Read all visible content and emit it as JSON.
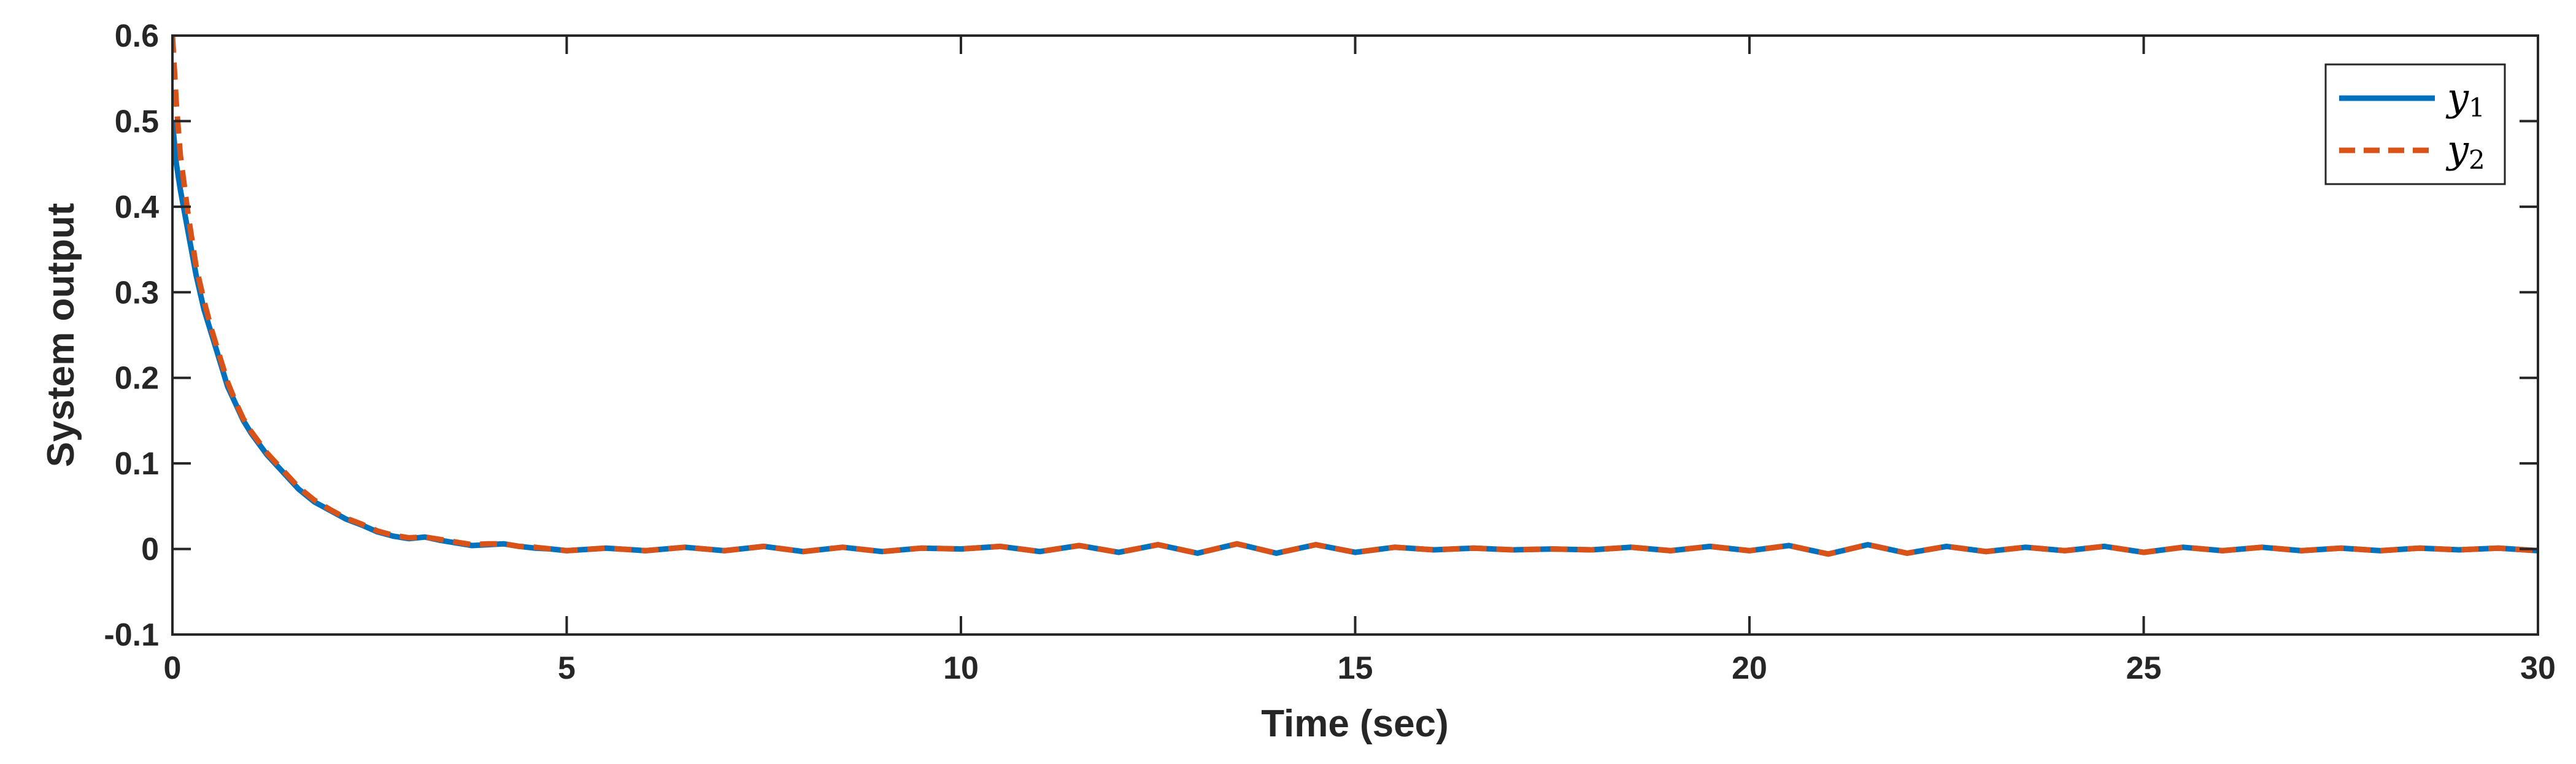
{
  "chart_data": {
    "type": "line",
    "title": "",
    "xlabel": "Time (sec)",
    "ylabel": "System output",
    "xlim": [
      0,
      30
    ],
    "ylim": [
      -0.1,
      0.6
    ],
    "xticks": [
      0,
      5,
      10,
      15,
      20,
      25,
      30
    ],
    "yticks": [
      -0.1,
      0,
      0.1,
      0.2,
      0.3,
      0.4,
      0.5,
      0.6
    ],
    "xtick_labels": [
      "0",
      "5",
      "10",
      "15",
      "20",
      "25",
      "30"
    ],
    "ytick_labels": [
      "-0.1",
      "0",
      "0.1",
      "0.2",
      "0.3",
      "0.4",
      "0.5",
      "0.6"
    ],
    "grid": false,
    "legend_position": "top-right",
    "series": [
      {
        "name": "y1",
        "name_base": "y",
        "name_sub": "1",
        "color": "#0072BD",
        "line_style": "solid",
        "x": [
          0,
          0.05,
          0.1,
          0.2,
          0.3,
          0.4,
          0.5,
          0.6,
          0.7,
          0.8,
          0.9,
          1.0,
          1.2,
          1.4,
          1.6,
          1.8,
          2.0,
          2.2,
          2.4,
          2.6,
          2.8,
          3.0,
          3.2,
          3.4,
          3.6,
          3.8,
          4.0,
          4.2,
          4.4,
          4.6,
          4.8,
          5.0,
          5.5,
          6.0,
          6.5,
          7.0,
          7.5,
          8.0,
          8.5,
          9.0,
          9.5,
          10.0,
          10.5,
          11.0,
          11.5,
          12.0,
          12.5,
          13.0,
          13.5,
          14.0,
          14.5,
          15.0,
          15.5,
          16.0,
          16.5,
          17.0,
          17.5,
          18.0,
          18.5,
          19.0,
          19.5,
          20.0,
          20.5,
          21.0,
          21.5,
          22.0,
          22.5,
          23.0,
          23.5,
          24.0,
          24.5,
          25.0,
          25.5,
          26.0,
          26.5,
          27.0,
          27.5,
          28.0,
          28.5,
          29.0,
          29.5,
          30.0
        ],
        "y": [
          0.5,
          0.45,
          0.42,
          0.37,
          0.32,
          0.28,
          0.25,
          0.22,
          0.19,
          0.17,
          0.15,
          0.135,
          0.11,
          0.09,
          0.07,
          0.055,
          0.045,
          0.035,
          0.028,
          0.02,
          0.015,
          0.012,
          0.014,
          0.01,
          0.007,
          0.004,
          0.005,
          0.006,
          0.003,
          0.001,
          0.0,
          -0.002,
          0.001,
          -0.002,
          0.002,
          -0.002,
          0.003,
          -0.003,
          0.002,
          -0.003,
          0.001,
          0.0,
          0.003,
          -0.003,
          0.004,
          -0.004,
          0.005,
          -0.005,
          0.006,
          -0.005,
          0.005,
          -0.004,
          0.002,
          -0.001,
          0.001,
          -0.001,
          0.0,
          -0.001,
          0.002,
          -0.002,
          0.003,
          -0.002,
          0.004,
          -0.006,
          0.005,
          -0.005,
          0.003,
          -0.003,
          0.002,
          -0.002,
          0.003,
          -0.004,
          0.002,
          -0.002,
          0.002,
          -0.002,
          0.001,
          -0.002,
          0.001,
          -0.001,
          0.001,
          -0.002
        ]
      },
      {
        "name": "y2",
        "name_base": "y",
        "name_sub": "2",
        "color": "#D95319",
        "line_style": "dashed",
        "x": [
          0,
          0.05,
          0.1,
          0.2,
          0.3,
          0.4,
          0.5,
          0.6,
          0.7,
          0.8,
          0.9,
          1.0,
          1.2,
          1.4,
          1.6,
          1.8,
          2.0,
          2.2,
          2.4,
          2.6,
          2.8,
          3.0,
          3.2,
          3.4,
          3.6,
          3.8,
          4.0,
          4.2,
          4.4,
          4.6,
          4.8,
          5.0,
          5.5,
          6.0,
          6.5,
          7.0,
          7.5,
          8.0,
          8.5,
          9.0,
          9.5,
          10.0,
          10.5,
          11.0,
          11.5,
          12.0,
          12.5,
          13.0,
          13.5,
          14.0,
          14.5,
          15.0,
          15.5,
          16.0,
          16.5,
          17.0,
          17.5,
          18.0,
          18.5,
          19.0,
          19.5,
          20.0,
          20.5,
          21.0,
          21.5,
          22.0,
          22.5,
          23.0,
          23.5,
          24.0,
          24.5,
          25.0,
          25.5,
          26.0,
          26.5,
          27.0,
          27.5,
          28.0,
          28.5,
          29.0,
          29.5,
          30.0
        ],
        "y": [
          0.6,
          0.52,
          0.46,
          0.39,
          0.33,
          0.29,
          0.255,
          0.225,
          0.195,
          0.172,
          0.152,
          0.137,
          0.112,
          0.092,
          0.072,
          0.057,
          0.046,
          0.036,
          0.029,
          0.021,
          0.016,
          0.013,
          0.014,
          0.011,
          0.008,
          0.005,
          0.006,
          0.006,
          0.003,
          0.002,
          0.0,
          -0.002,
          0.001,
          -0.002,
          0.002,
          -0.002,
          0.003,
          -0.003,
          0.002,
          -0.003,
          0.001,
          0.0,
          0.003,
          -0.003,
          0.004,
          -0.004,
          0.005,
          -0.005,
          0.006,
          -0.005,
          0.005,
          -0.004,
          0.002,
          -0.001,
          0.001,
          -0.001,
          0.0,
          -0.001,
          0.002,
          -0.002,
          0.003,
          -0.002,
          0.004,
          -0.006,
          0.005,
          -0.005,
          0.003,
          -0.003,
          0.002,
          -0.002,
          0.003,
          -0.004,
          0.002,
          -0.002,
          0.002,
          -0.002,
          0.001,
          -0.002,
          0.001,
          -0.001,
          0.001,
          -0.002
        ]
      }
    ]
  }
}
